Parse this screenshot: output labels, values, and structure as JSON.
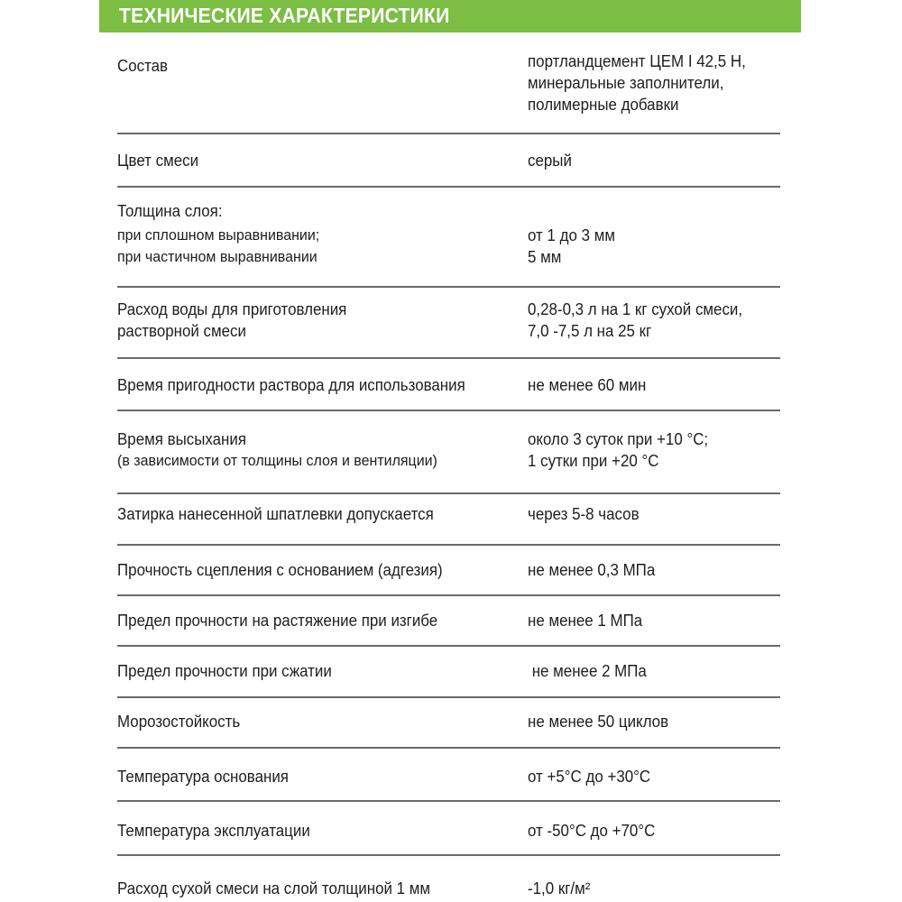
{
  "header": {
    "title": "ТЕХНИЧЕСКИЕ ХАРАКТЕРИСТИКИ",
    "color": "#7cbd43"
  },
  "rows": [
    {
      "label": [
        "Состав"
      ],
      "value": [
        "портландцемент ЦЕМ I 42,5 Н,",
        "минеральные заполнители,",
        "полимерные добавки"
      ]
    },
    {
      "label": [
        "Цвет смеси"
      ],
      "value": [
        "серый"
      ]
    },
    {
      "label": [
        "Толщина слоя:",
        "при сплошном выравнивании;",
        "при частичном выравнивании"
      ],
      "value": [
        "от 1 до 3 мм",
        "5 мм"
      ]
    },
    {
      "label": [
        "Расход воды для приготовления",
        "растворной смеси"
      ],
      "value": [
        "0,28-0,3 л на 1 кг сухой смеси,",
        "7,0 -7,5 л на 25 кг"
      ]
    },
    {
      "label": [
        "Время пригодности раствора для использования"
      ],
      "value": [
        "не менее 60 мин"
      ]
    },
    {
      "label": [
        "Время высыхания",
        "(в зависимости от толщины слоя и вентиляции)"
      ],
      "value": [
        "около 3 суток при +10 °С;",
        "1 сутки при +20 °С"
      ]
    },
    {
      "label": [
        "Затирка нанесенной шпатлевки допускается"
      ],
      "value": [
        "через 5-8 часов"
      ]
    },
    {
      "label": [
        "Прочность сцепления с основанием (адгезия)"
      ],
      "value": [
        "не менее 0,3 МПа"
      ]
    },
    {
      "label": [
        "Предел прочности на растяжение при изгибе"
      ],
      "value": [
        "не менее 1 МПа"
      ]
    },
    {
      "label": [
        "Предел прочности при сжатии"
      ],
      "value": [
        " не менее 2 МПа"
      ]
    },
    {
      "label": [
        "Морозостойкость"
      ],
      "value": [
        "не менее 50 циклов"
      ]
    },
    {
      "label": [
        "Температура основания"
      ],
      "value": [
        "от +5°С до +30°С"
      ]
    },
    {
      "label": [
        "Температура эксплуатации"
      ],
      "value": [
        "от -50°С до +70°С"
      ]
    },
    {
      "label": [
        "Расход сухой смеси на слой толщиной 1 мм"
      ],
      "value": [
        "-1,0 кг/м²"
      ]
    }
  ]
}
